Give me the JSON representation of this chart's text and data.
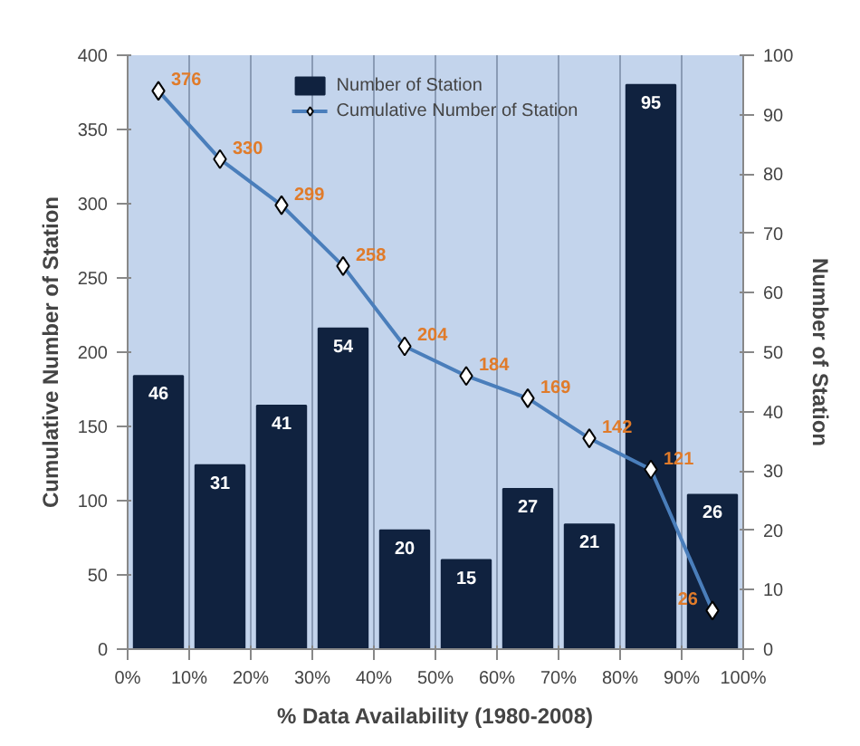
{
  "chart_data": {
    "type": "bar",
    "xlabel": "% Data Availability (1980-2008)",
    "ylabel": "Cumulative Number of Station",
    "y2label": "Number of Station",
    "x": [
      5,
      15,
      25,
      35,
      45,
      55,
      65,
      75,
      85,
      95
    ],
    "series": [
      {
        "name": "Number of Station",
        "axis": "y2",
        "color": "#10223f",
        "values": [
          46,
          31,
          41,
          54,
          20,
          15,
          27,
          21,
          95,
          26
        ]
      },
      {
        "name": "Cumulative Number of Station",
        "type": "line",
        "color": "#4a7ebb",
        "marker": "diamond",
        "values": [
          376,
          330,
          299,
          258,
          204,
          184,
          169,
          142,
          121,
          26
        ]
      }
    ],
    "xlim": [
      0,
      100
    ],
    "xticks": [
      {
        "value": 0,
        "label": "0%"
      },
      {
        "value": 10,
        "label": "10%"
      },
      {
        "value": 20,
        "label": "20%"
      },
      {
        "value": 30,
        "label": "30%"
      },
      {
        "value": 40,
        "label": "40%"
      },
      {
        "value": 50,
        "label": "50%"
      },
      {
        "value": 60,
        "label": "60%"
      },
      {
        "value": 70,
        "label": "70%"
      },
      {
        "value": 80,
        "label": "80%"
      },
      {
        "value": 90,
        "label": "90%"
      },
      {
        "value": 100,
        "label": "100%"
      }
    ],
    "ylim": [
      0,
      400
    ],
    "yticks": [
      0,
      50,
      100,
      150,
      200,
      250,
      300,
      350,
      400
    ],
    "y2lim": [
      0,
      100
    ],
    "y2ticks": [
      0,
      10,
      20,
      30,
      40,
      50,
      60,
      70,
      80,
      90,
      100
    ],
    "grid": "x",
    "legend": "top",
    "data_labels": true
  }
}
